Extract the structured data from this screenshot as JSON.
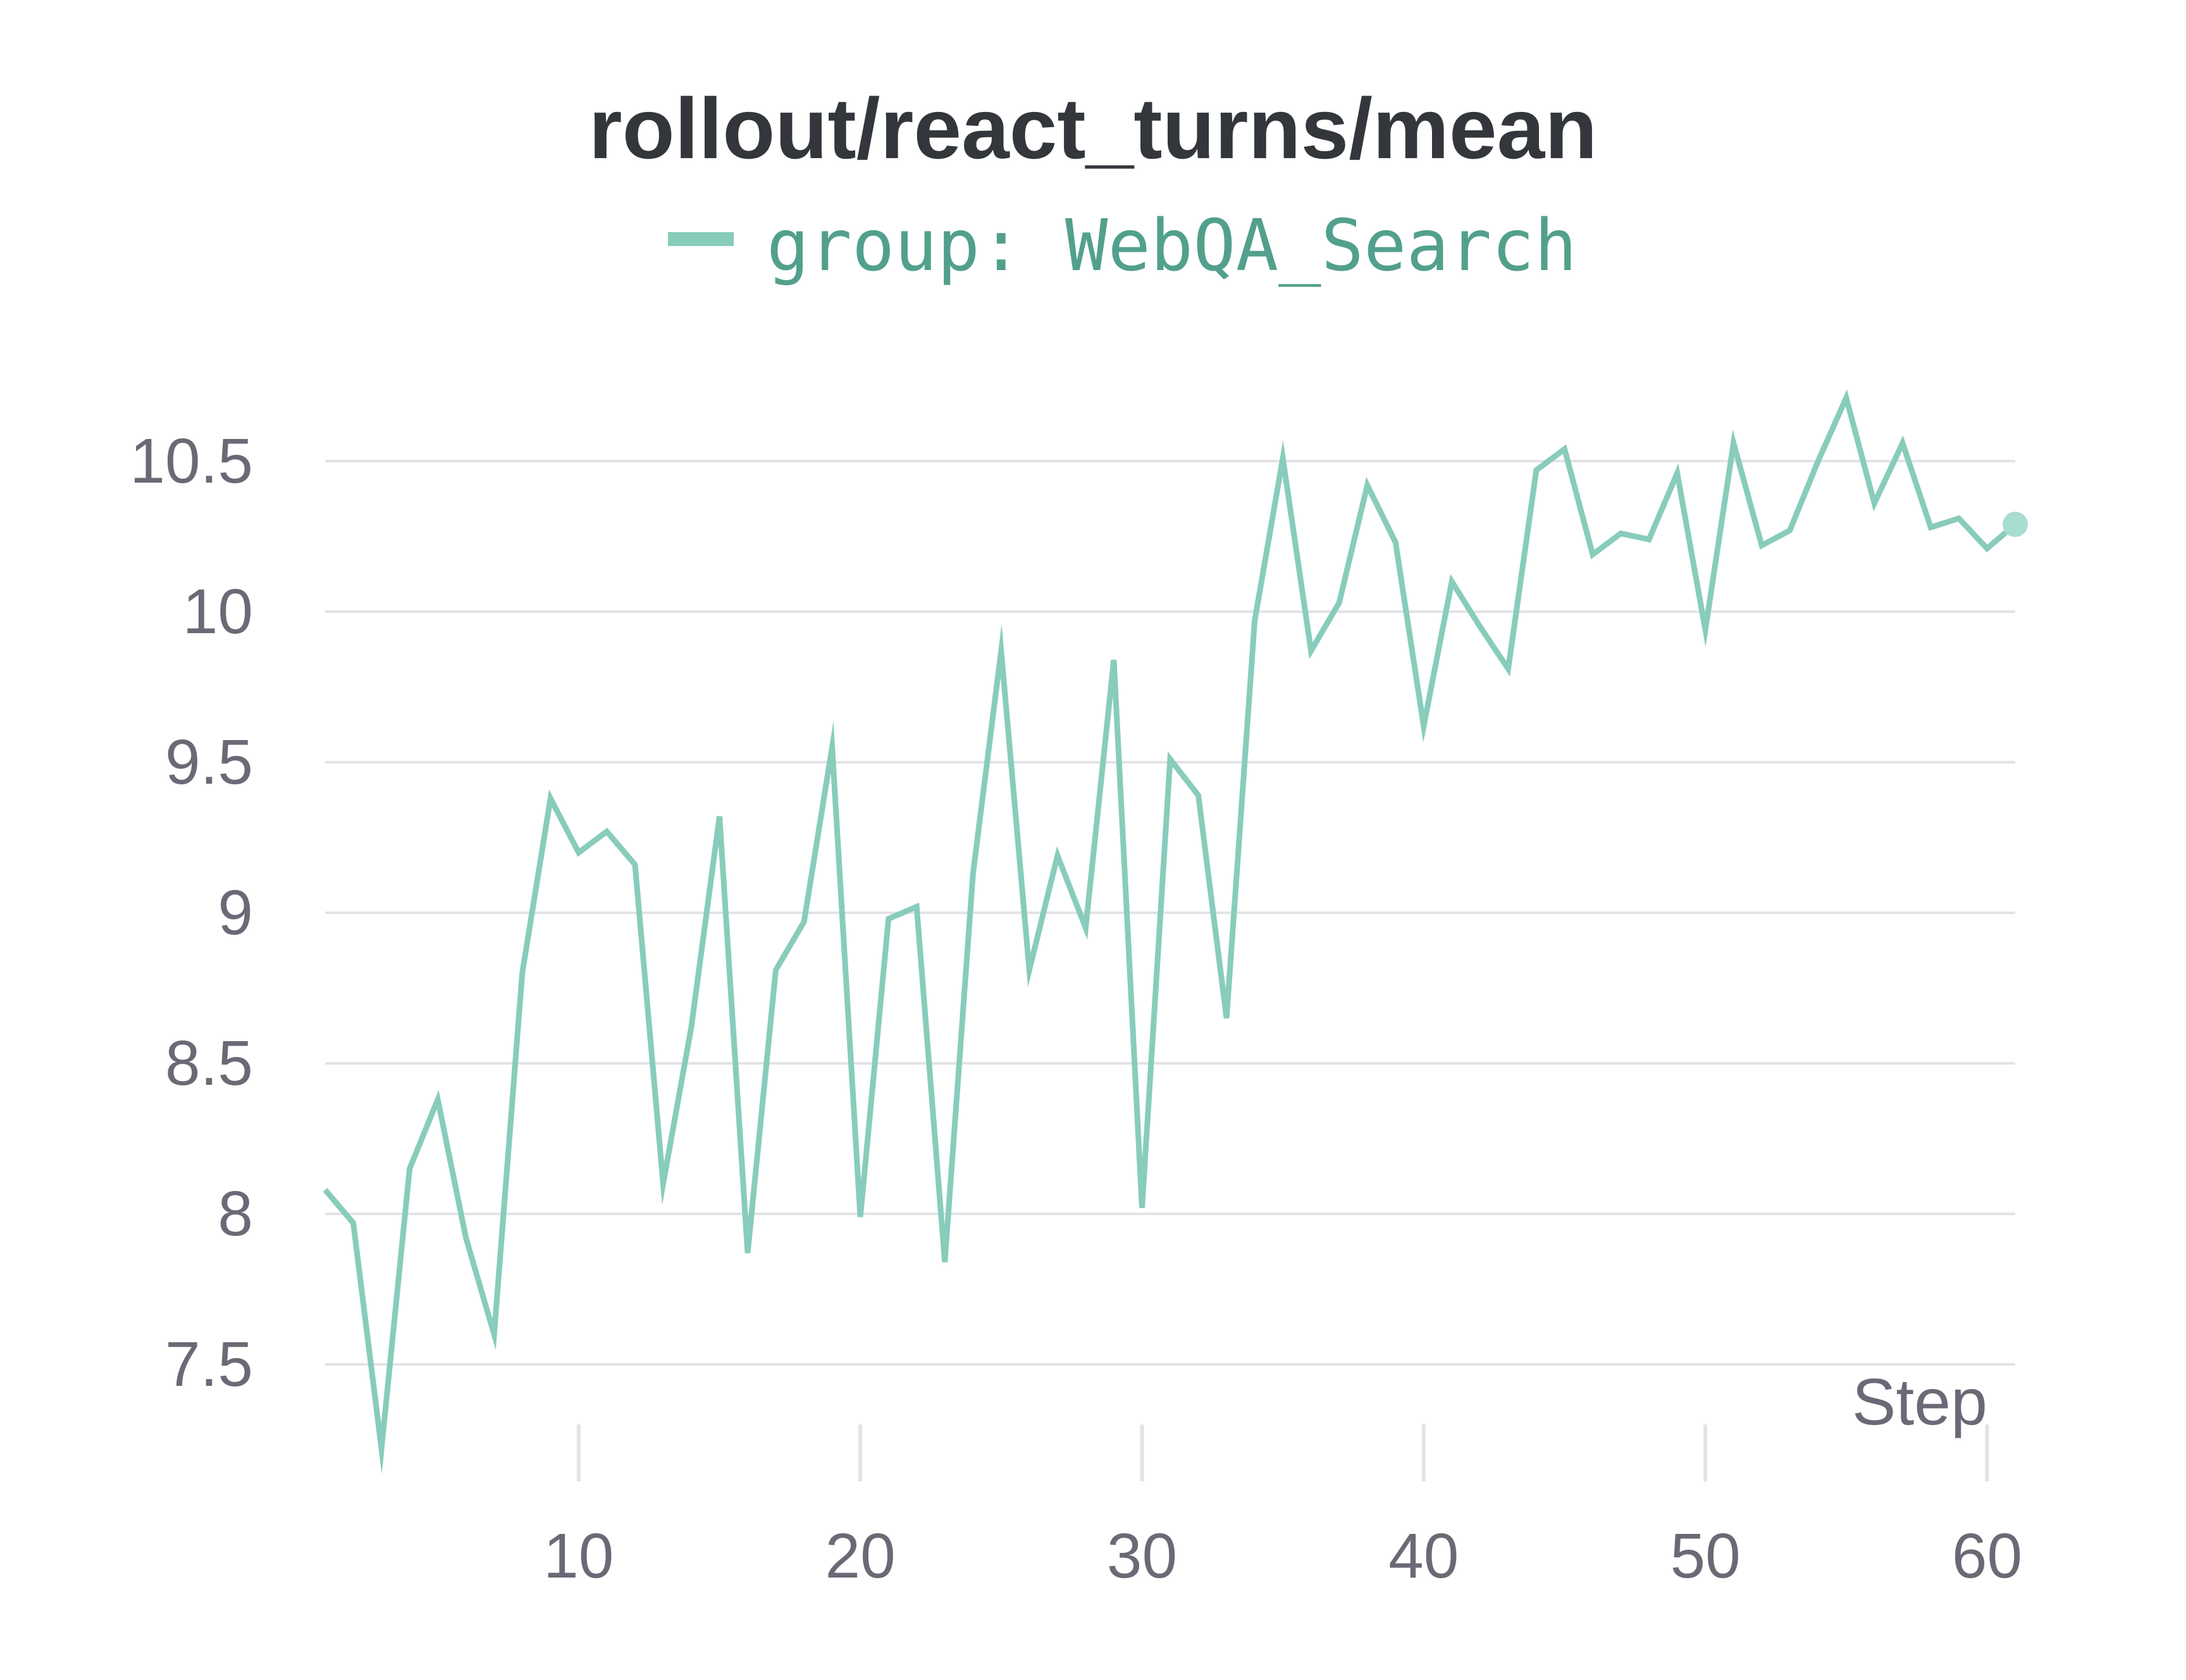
{
  "chart_data": {
    "type": "line",
    "title": "rollout/react_turns/mean",
    "xlabel": "Step",
    "ylabel": "",
    "legend_position": "top-center",
    "grid": true,
    "xlim": [
      1,
      61
    ],
    "ylim": [
      7.2,
      10.75
    ],
    "x_ticks": [
      10,
      20,
      30,
      40,
      50,
      60
    ],
    "y_ticks": [
      7.5,
      8,
      8.5,
      9,
      9.5,
      10,
      10.5
    ],
    "series": [
      {
        "name": "group: WebQA_Search",
        "color": "#88ccbb",
        "legend_text_color": "#52a08c",
        "x": [
          1,
          2,
          3,
          4,
          5,
          6,
          7,
          8,
          9,
          10,
          11,
          12,
          13,
          14,
          15,
          16,
          17,
          18,
          19,
          20,
          21,
          22,
          23,
          24,
          25,
          26,
          27,
          28,
          29,
          30,
          31,
          32,
          33,
          34,
          35,
          36,
          37,
          38,
          39,
          40,
          41,
          42,
          43,
          44,
          45,
          46,
          47,
          48,
          49,
          50,
          51,
          52,
          53,
          54,
          55,
          56,
          57,
          58,
          59,
          60,
          61
        ],
        "values": [
          8.08,
          7.97,
          7.22,
          8.15,
          8.38,
          7.92,
          7.6,
          8.8,
          9.38,
          9.2,
          9.27,
          9.16,
          8.1,
          8.62,
          9.32,
          7.87,
          8.81,
          8.97,
          9.55,
          7.99,
          8.98,
          9.02,
          7.84,
          9.13,
          9.87,
          8.81,
          9.19,
          8.95,
          9.84,
          8.02,
          9.51,
          9.39,
          8.65,
          9.97,
          10.51,
          9.87,
          10.03,
          10.42,
          10.23,
          9.62,
          10.1,
          9.95,
          9.81,
          10.47,
          10.54,
          10.19,
          10.26,
          10.24,
          10.46,
          9.94,
          10.56,
          10.22,
          10.27,
          10.5,
          10.71,
          10.36,
          10.56,
          10.28,
          10.31,
          10.21,
          10.29
        ]
      }
    ]
  }
}
